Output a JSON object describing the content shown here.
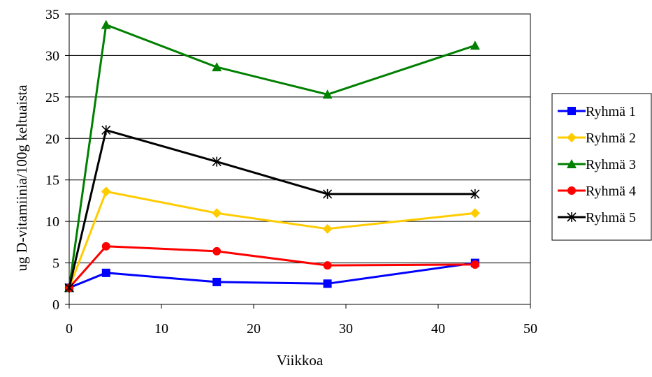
{
  "chart_data": {
    "type": "line",
    "title": "",
    "xlabel": "Viikkoa",
    "ylabel": "ug D-vitamiinia/100g keltuaista",
    "xlim": [
      0,
      50
    ],
    "ylim": [
      0,
      35
    ],
    "xticks": [
      "0",
      "10",
      "20",
      "30",
      "40",
      "50"
    ],
    "yticks": [
      "0",
      "5",
      "10",
      "15",
      "20",
      "25",
      "30",
      "35"
    ],
    "grid": "horizontal",
    "legend_position": "right",
    "x": [
      0,
      4,
      16,
      28,
      44
    ],
    "series": [
      {
        "name": "Ryhmä 1",
        "values": [
          2.0,
          3.8,
          2.7,
          2.5,
          5.0
        ],
        "color": "#0000ff",
        "marker": "square"
      },
      {
        "name": "Ryhmä 2",
        "values": [
          2.0,
          13.6,
          11.0,
          9.1,
          11.0
        ],
        "color": "#ffcc00",
        "marker": "diamond"
      },
      {
        "name": "Ryhmä 3",
        "values": [
          2.0,
          33.7,
          28.6,
          25.3,
          31.2
        ],
        "color": "#008000",
        "marker": "triangle"
      },
      {
        "name": "Ryhmä 4",
        "values": [
          2.0,
          7.0,
          6.4,
          4.7,
          4.8
        ],
        "color": "#ff0000",
        "marker": "circle"
      },
      {
        "name": "Ryhmä 5",
        "values": [
          2.0,
          21.0,
          17.2,
          13.3,
          13.3
        ],
        "color": "#000000",
        "marker": "asterisk"
      }
    ]
  }
}
